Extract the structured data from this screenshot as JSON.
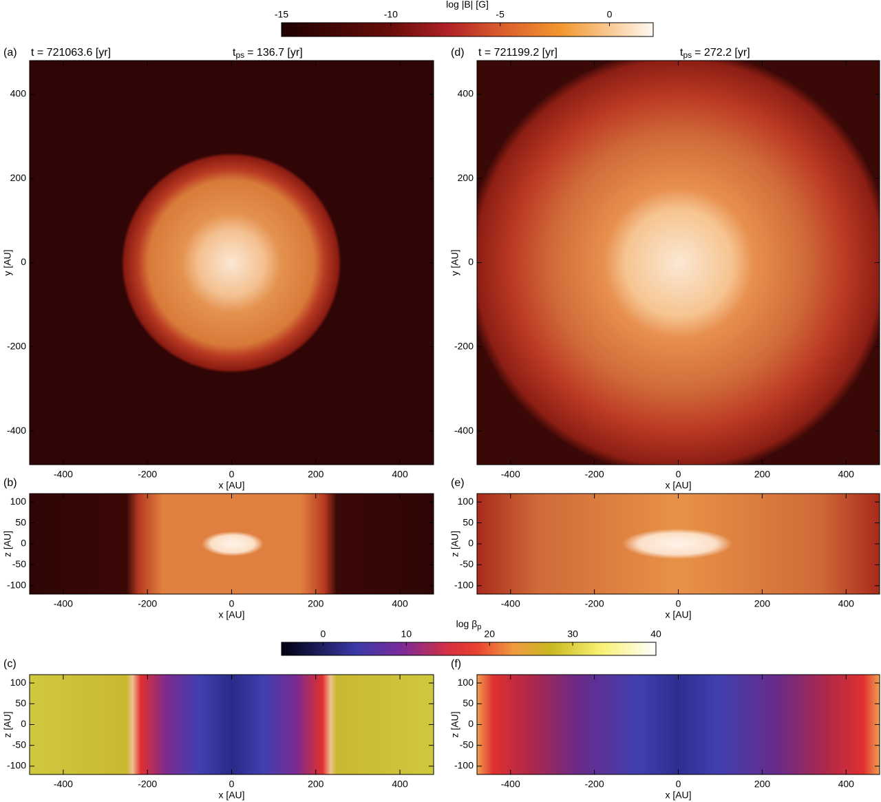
{
  "chart_data": [
    {
      "type": "colorbar",
      "title": "log |B| [G]",
      "lim": [
        -15,
        2
      ],
      "ticks": [
        -15,
        -10,
        -5,
        0
      ]
    },
    {
      "type": "heatmap",
      "label": "(a)",
      "title": "t = 721063.6 [yr]",
      "subtitle": {
        "base": "t",
        "sub": "ps",
        "text": "= 136.7 [yr]"
      },
      "xlabel": "x [AU]",
      "ylabel": "y [AU]",
      "xlim": [
        -480,
        480
      ],
      "ylim": [
        -480,
        480
      ],
      "xticks": [
        -400,
        -200,
        0,
        200,
        400
      ],
      "yticks": [
        -400,
        -200,
        0,
        200,
        400
      ]
    },
    {
      "type": "heatmap",
      "label": "(b)",
      "xlabel": "x [AU]",
      "ylabel": "z [AU]",
      "xlim": [
        -480,
        480
      ],
      "ylim": [
        -120,
        120
      ],
      "xticks": [
        -400,
        -200,
        0,
        200,
        400
      ],
      "yticks": [
        -100,
        -50,
        0,
        50,
        100
      ]
    },
    {
      "type": "heatmap",
      "label": "(d)",
      "title": "t = 721199.2 [yr]",
      "subtitle": {
        "base": "t",
        "sub": "ps",
        "text": "= 272.2 [yr]"
      },
      "xlabel": "x [AU]",
      "ylabel": "y [AU]",
      "xlim": [
        -480,
        480
      ],
      "ylim": [
        -480,
        480
      ],
      "xticks": [
        -400,
        -200,
        0,
        200,
        400
      ],
      "yticks": [
        -400,
        -200,
        0,
        200,
        400
      ]
    },
    {
      "type": "heatmap",
      "label": "(e)",
      "xlabel": "x [AU]",
      "ylabel": "z [AU]",
      "xlim": [
        -480,
        480
      ],
      "ylim": [
        -120,
        120
      ],
      "xticks": [
        -400,
        -200,
        0,
        200,
        400
      ],
      "yticks": [
        -100,
        -50,
        0,
        50,
        100
      ]
    },
    {
      "type": "colorbar",
      "title": "log β",
      "title_sub": "p",
      "lim": [
        -5,
        40
      ],
      "ticks": [
        0,
        10,
        20,
        30,
        40
      ]
    },
    {
      "type": "heatmap",
      "label": "(c)",
      "xlabel": "x [AU]",
      "ylabel": "z [AU]",
      "xlim": [
        -480,
        480
      ],
      "ylim": [
        -120,
        120
      ],
      "xticks": [
        -400,
        -200,
        0,
        200,
        400
      ],
      "yticks": [
        -100,
        -50,
        0,
        50,
        100
      ]
    },
    {
      "type": "heatmap",
      "label": "(f)",
      "xlabel": "x [AU]",
      "ylabel": "z [AU]",
      "xlim": [
        -480,
        480
      ],
      "ylim": [
        -120,
        120
      ],
      "xticks": [
        -400,
        -200,
        0,
        200,
        400
      ],
      "yticks": [
        -100,
        -50,
        0,
        50,
        100
      ]
    }
  ]
}
